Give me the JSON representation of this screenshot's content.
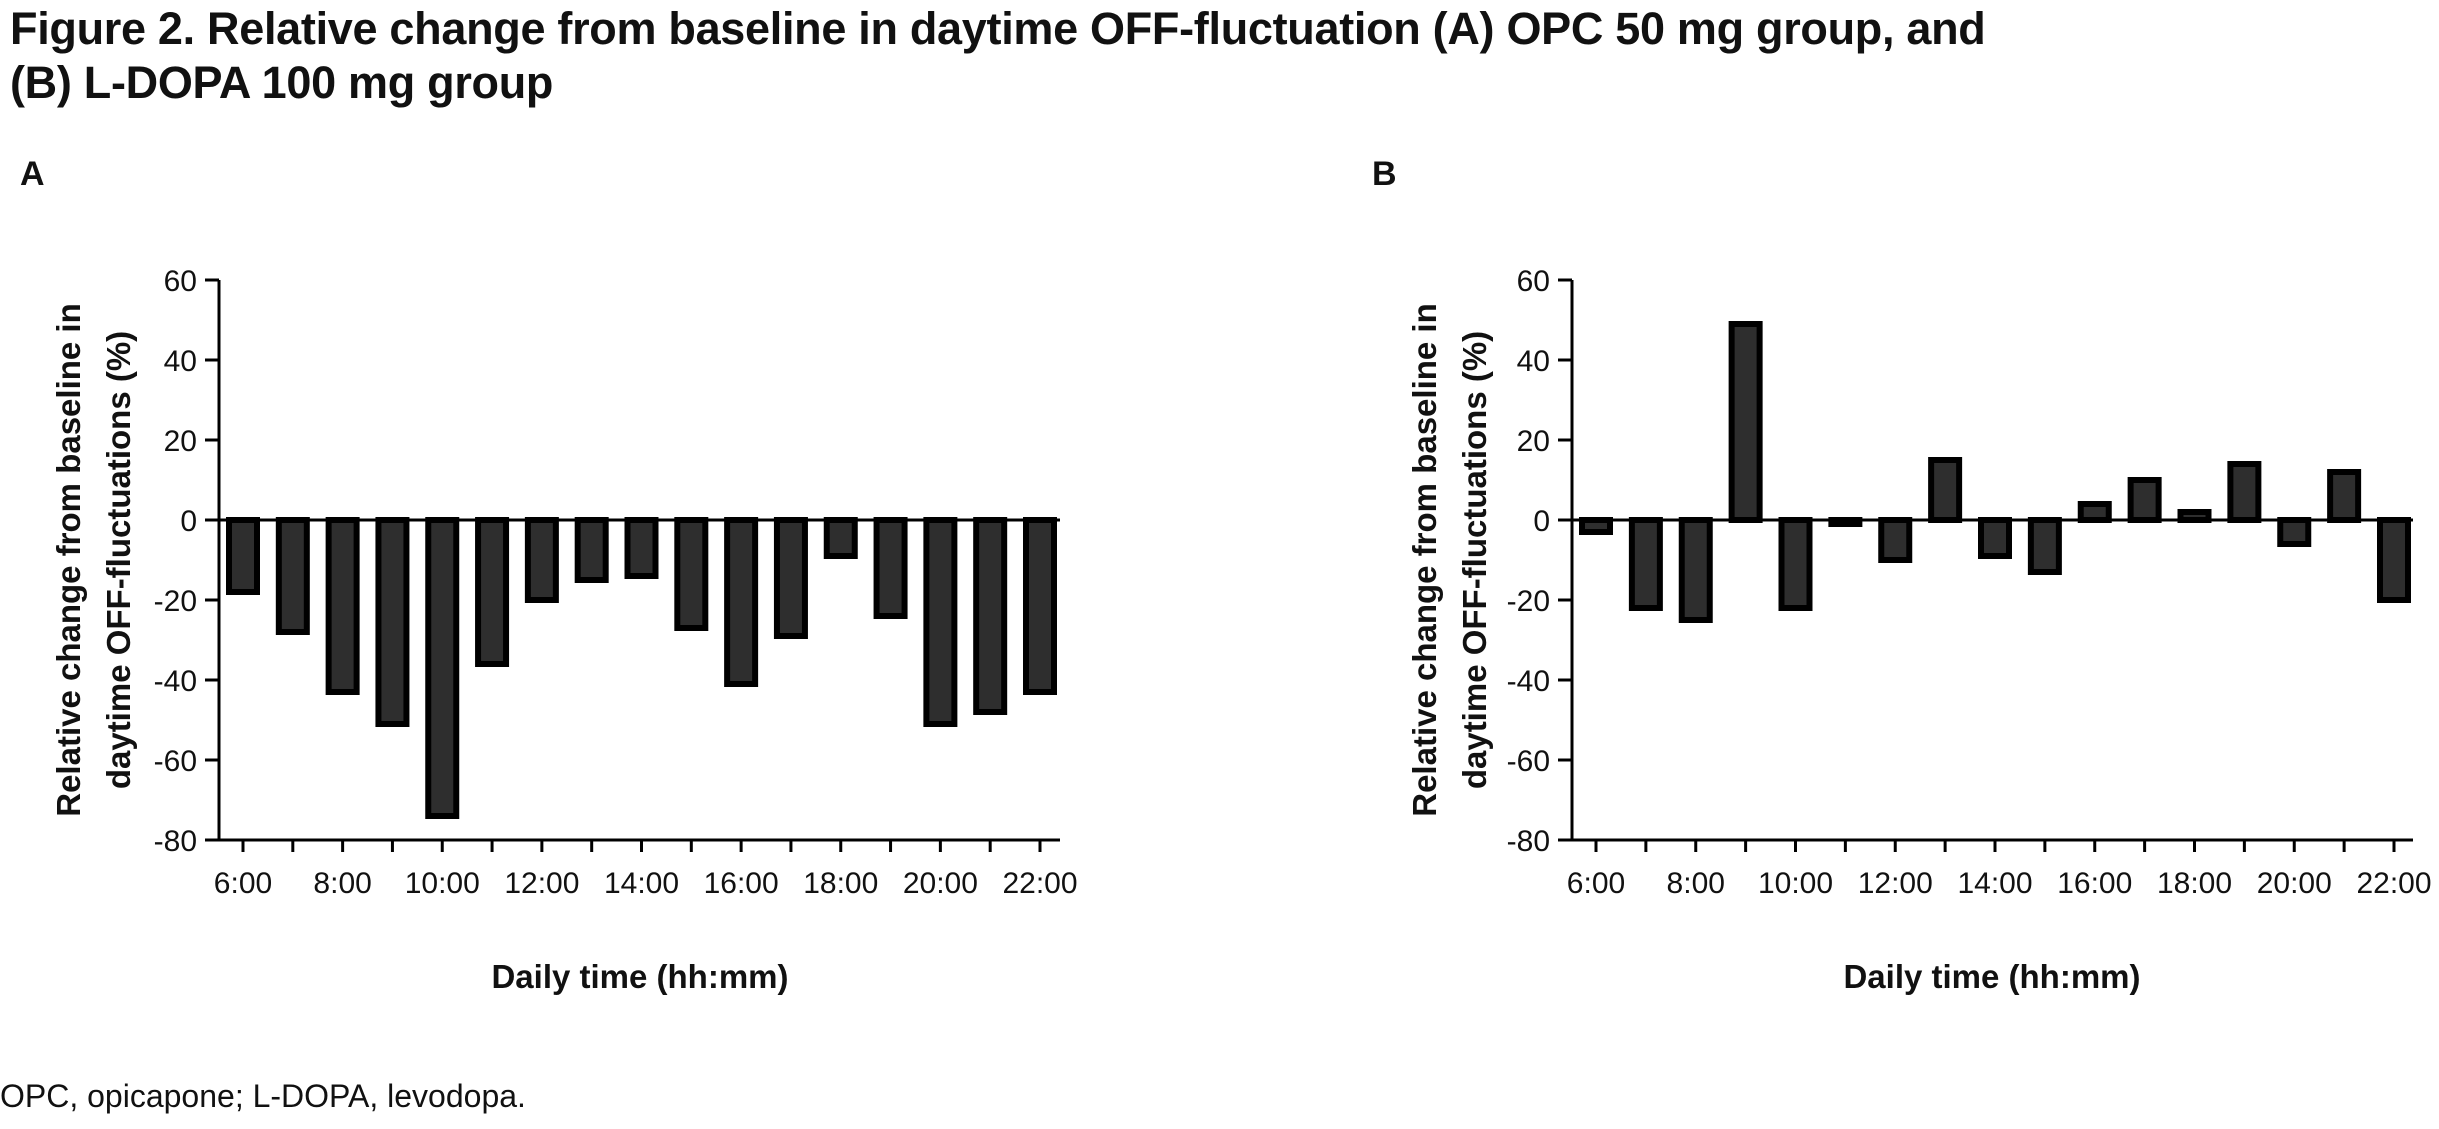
{
  "figure": {
    "title_line1": "Figure 2. Relative change from baseline in daytime OFF-fluctuation (A) OPC 50 mg group, and",
    "title_line2": "(B) L-DOPA 100 mg group",
    "footnote": "OPC, opicapone; L-DOPA, levodopa."
  },
  "colors": {
    "bar_fill": "#2e2e2e",
    "bar_edge": "#000000",
    "axis": "#000000"
  },
  "chart_data": [
    {
      "panel": "A",
      "type": "bar",
      "ylabel": [
        "Relative change from baseline in",
        "daytime OFF-fluctuations (%)"
      ],
      "xlabel": "Daily time (hh:mm)",
      "ylim": [
        -80,
        60
      ],
      "yticks": [
        60,
        40,
        20,
        0,
        -20,
        -40,
        -60,
        -80
      ],
      "x": [
        6,
        7,
        8,
        9,
        10,
        11,
        12,
        13,
        14,
        15,
        16,
        17,
        18,
        19,
        20,
        21,
        22
      ],
      "xticklabels": [
        "6:00",
        "8:00",
        "10:00",
        "12:00",
        "14:00",
        "16:00",
        "18:00",
        "20:00",
        "22:00"
      ],
      "values": [
        -18,
        -28,
        -43,
        -51,
        -74,
        -36,
        -20,
        -15,
        -14,
        -27,
        -41,
        -29,
        -9,
        -24,
        -51,
        -48,
        -43
      ],
      "grid": false
    },
    {
      "panel": "B",
      "type": "bar",
      "ylabel": [
        "Relative change from baseline in",
        "daytime OFF-fluctuations (%)"
      ],
      "xlabel": "Daily time (hh:mm)",
      "ylim": [
        -80,
        60
      ],
      "yticks": [
        60,
        40,
        20,
        0,
        -20,
        -40,
        -60,
        -80
      ],
      "x": [
        6,
        7,
        8,
        9,
        10,
        11,
        12,
        13,
        14,
        15,
        16,
        17,
        18,
        19,
        20,
        21,
        22
      ],
      "xticklabels": [
        "6:00",
        "8:00",
        "10:00",
        "12:00",
        "14:00",
        "16:00",
        "18:00",
        "20:00",
        "22:00"
      ],
      "values": [
        -3,
        -22,
        -25,
        49,
        -22,
        -1,
        -10,
        15,
        -9,
        -13,
        4,
        10,
        2,
        14,
        -6,
        12,
        -20
      ],
      "grid": false
    }
  ]
}
